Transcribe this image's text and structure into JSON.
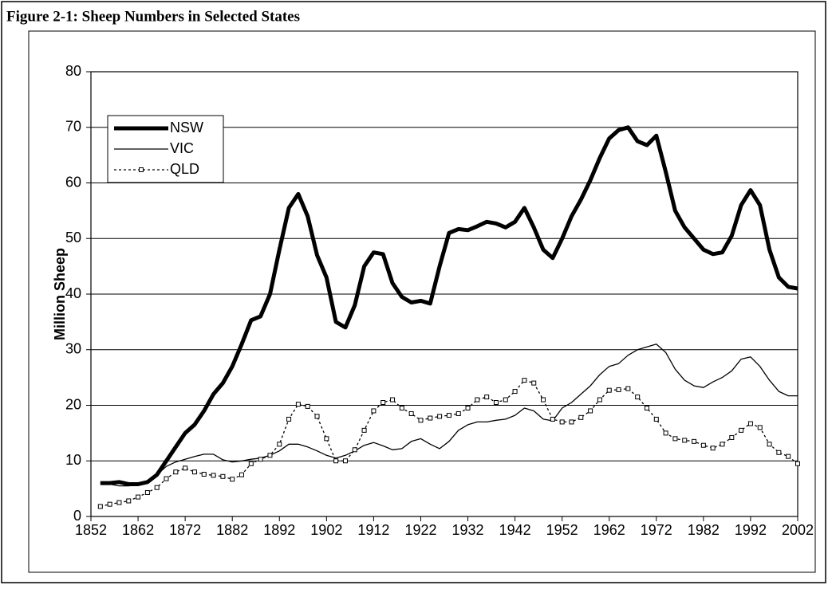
{
  "chart_data": {
    "type": "line",
    "title": "Figure 2-1: Sheep Numbers in Selected States",
    "y_label": "Million Sheep",
    "x": [
      1854,
      1856,
      1858,
      1860,
      1862,
      1864,
      1866,
      1868,
      1870,
      1872,
      1874,
      1876,
      1878,
      1880,
      1882,
      1884,
      1886,
      1888,
      1890,
      1892,
      1894,
      1896,
      1898,
      1900,
      1902,
      1904,
      1906,
      1908,
      1910,
      1912,
      1914,
      1916,
      1918,
      1920,
      1922,
      1924,
      1926,
      1928,
      1930,
      1932,
      1934,
      1936,
      1938,
      1940,
      1942,
      1944,
      1946,
      1948,
      1950,
      1952,
      1954,
      1956,
      1958,
      1960,
      1962,
      1964,
      1966,
      1968,
      1970,
      1972,
      1974,
      1976,
      1978,
      1980,
      1982,
      1984,
      1986,
      1988,
      1990,
      1992,
      1994,
      1996,
      1998,
      2000,
      2002
    ],
    "series": [
      {
        "name": "NSW",
        "color": "#000000",
        "line_width": 5,
        "dash": "none",
        "marker": "none",
        "values": [
          6,
          6,
          6.2,
          5.8,
          5.8,
          6.2,
          7.5,
          10,
          12.5,
          15,
          16.5,
          19,
          22,
          24,
          27,
          31,
          35.3,
          36,
          40,
          48,
          55.5,
          58,
          54,
          47,
          43,
          35,
          34,
          38,
          45,
          47.5,
          47.2,
          42,
          39.5,
          38.5,
          38.8,
          38.3,
          45,
          51,
          51.7,
          51.5,
          52.2,
          53,
          52.7,
          52,
          53,
          55.5,
          52,
          48,
          46.5,
          50,
          54,
          57,
          60.5,
          64.5,
          68,
          69.5,
          70,
          67.5,
          66.8,
          68.5,
          62,
          55,
          52,
          50,
          48,
          47.2,
          47.5,
          50.5,
          56,
          58.7,
          56,
          48,
          43,
          41.3,
          41
        ]
      },
      {
        "name": "VIC",
        "color": "#000000",
        "line_width": 1.3,
        "dash": "none",
        "marker": "none",
        "values": [
          6,
          5.8,
          5.5,
          5.5,
          5.7,
          6.2,
          7.5,
          9,
          9.8,
          10.3,
          10.8,
          11.2,
          11.2,
          10.2,
          9.8,
          10,
          10.3,
          10.5,
          11,
          11.8,
          13,
          13,
          12.5,
          11.8,
          11,
          10.5,
          11,
          11.8,
          12.8,
          13.3,
          12.7,
          12,
          12.2,
          13.5,
          14,
          13,
          12.2,
          13.5,
          15.5,
          16.5,
          17,
          17,
          17.3,
          17.5,
          18.2,
          19.5,
          19,
          17.5,
          17.2,
          19.5,
          20.5,
          22,
          23.5,
          25.5,
          27,
          27.5,
          29,
          30,
          30.5,
          31,
          29.5,
          26.5,
          24.5,
          23.5,
          23.2,
          24.2,
          25,
          26.2,
          28.3,
          28.7,
          27,
          24.5,
          22.5,
          21.7,
          21.7
        ]
      },
      {
        "name": "QLD",
        "color": "#000000",
        "line_width": 1.3,
        "dash": "3 3",
        "marker": "square",
        "values": [
          1.8,
          2.2,
          2.5,
          2.8,
          3.5,
          4.3,
          5.2,
          6.8,
          8,
          8.7,
          8,
          7.6,
          7.4,
          7.2,
          6.7,
          7.5,
          9.5,
          10.3,
          11,
          13,
          17.5,
          20.2,
          19.8,
          18,
          14,
          10,
          10,
          12,
          15.5,
          19,
          20.5,
          21,
          19.5,
          18.5,
          17.3,
          17.7,
          18,
          18.2,
          18.5,
          19.5,
          21,
          21.5,
          20.5,
          21,
          22.5,
          24.5,
          24,
          21,
          17.5,
          17,
          17,
          17.8,
          19,
          21,
          22.7,
          22.8,
          23,
          21.5,
          19.5,
          17.5,
          15,
          14,
          13.7,
          13.5,
          12.8,
          12.3,
          13,
          14.2,
          15.5,
          16.7,
          16,
          13,
          11.5,
          10.8,
          9.5
        ]
      }
    ],
    "xlim": [
      1852,
      2002
    ],
    "xticks": [
      1852,
      1862,
      1872,
      1882,
      1892,
      1902,
      1912,
      1922,
      1932,
      1942,
      1952,
      1962,
      1972,
      1982,
      1992,
      2002
    ],
    "ylim": [
      0,
      80
    ],
    "yticks": [
      0,
      10,
      20,
      30,
      40,
      50,
      60,
      70,
      80
    ],
    "grid": true,
    "legend": "upper left"
  }
}
